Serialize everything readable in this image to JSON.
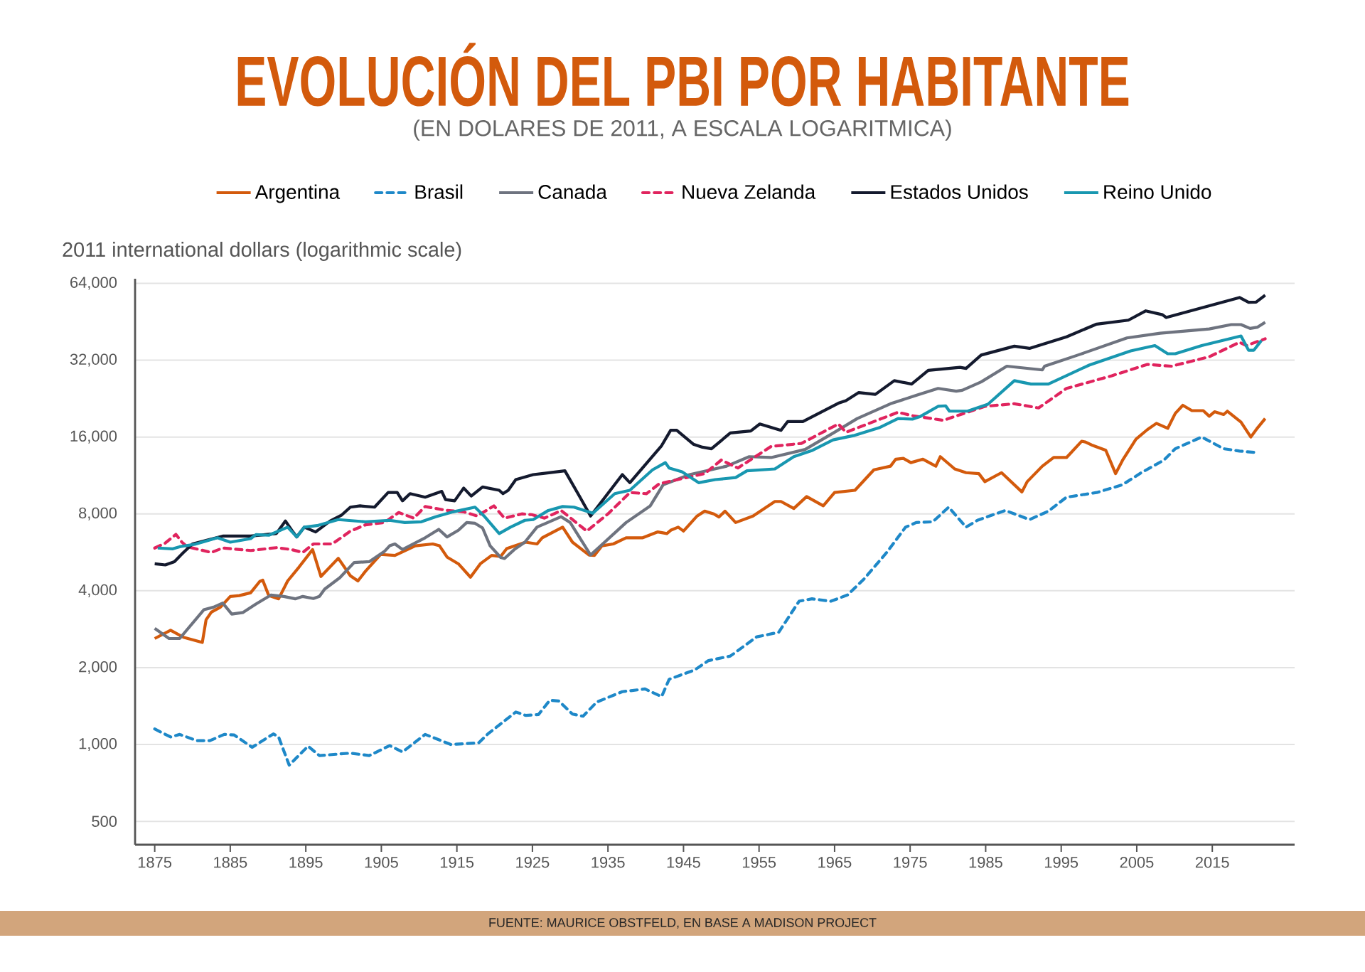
{
  "chart_data": {
    "type": "line",
    "title": "EVOLUCIÓN DEL PBI POR HABITANTE",
    "subtitle": "(EN DOLARES DE 2011, A ESCALA LOGARITMICA)",
    "ylabel": "2011 international dollars (logarithmic scale)",
    "annotations": [
      "FUENTE: MAURICE OBSTFELD, EN BASE A MADISON PROJECT"
    ],
    "log": "y",
    "grid": "y",
    "legend": "top",
    "xlim": [
      1872.4,
      2025.9
    ],
    "ylim": [
      405,
      66700
    ],
    "xticks": [
      1875,
      1885,
      1895,
      1905,
      1915,
      1925,
      1935,
      1945,
      1955,
      1965,
      1975,
      1985,
      1995,
      2005,
      2015
    ],
    "yticks": [
      500,
      {
        "value": 1000,
        "label": "1,000"
      },
      {
        "value": 2000,
        "label": "2,000"
      },
      {
        "value": 4000,
        "label": "4,000"
      },
      {
        "value": 8000,
        "label": "8,000"
      },
      {
        "value": 16000,
        "label": "16,000"
      },
      {
        "value": 32000,
        "label": "32,000"
      },
      {
        "value": 64000,
        "label": "64,000"
      }
    ],
    "series": [
      {
        "name": "Argentina",
        "color": "#d35a0c",
        "line_style": "solid",
        "x": [
          1875,
          1877.1,
          1878.8,
          1881.3,
          1881.8,
          1882.5,
          1883.7,
          1885,
          1886.2,
          1887.7,
          1888.9,
          1889.3,
          1890.1,
          1891.4,
          1892.6,
          1894.1,
          1895.9,
          1897,
          1899.3,
          1900.9,
          1901.9,
          1902.9,
          1904.9,
          1906.8,
          1909.5,
          1911.8,
          1912.7,
          1913.7,
          1915.2,
          1916.8,
          1918.1,
          1919.6,
          1920.8,
          1921.6,
          1924.1,
          1925.6,
          1926.3,
          1929,
          1930.3,
          1932.5,
          1933.2,
          1934.2,
          1935.7,
          1937.4,
          1939.6,
          1941.6,
          1942.8,
          1943.3,
          1944.3,
          1945,
          1946.8,
          1947.8,
          1949,
          1949.7,
          1950.5,
          1951.9,
          1954.2,
          1957.1,
          1957.9,
          1959.6,
          1961.3,
          1963.5,
          1965,
          1967.7,
          1970.2,
          1972.4,
          1973.1,
          1974.1,
          1975.1,
          1976.7,
          1978.4,
          1979,
          1980.9,
          1982.4,
          1984.1,
          1984.9,
          1987.1,
          1989.8,
          1990.5,
          1992.5,
          1994,
          1995.7,
          1997.7,
          1998.2,
          1999,
          2000.9,
          2002.2,
          2003.2,
          2004.9,
          2006.4,
          2007.6,
          2009.1,
          2010.1,
          2011.1,
          2012.3,
          2013.8,
          2014.6,
          2015.3,
          2016.5,
          2017,
          2018.8,
          2020.1,
          2021,
          2022
        ],
        "values": [
          2600,
          2800,
          2630,
          2510,
          3080,
          3300,
          3450,
          3800,
          3830,
          3930,
          4350,
          4400,
          3830,
          3720,
          4370,
          4950,
          5800,
          4550,
          5360,
          4580,
          4370,
          4770,
          5550,
          5500,
          6000,
          6100,
          6000,
          5420,
          5100,
          4520,
          5100,
          5500,
          5450,
          5850,
          6200,
          6100,
          6450,
          7100,
          6200,
          5520,
          5500,
          6000,
          6100,
          6450,
          6450,
          6800,
          6700,
          6900,
          7100,
          6850,
          7850,
          8200,
          8000,
          7780,
          8200,
          7400,
          7850,
          8950,
          8950,
          8400,
          9350,
          8600,
          9700,
          9900,
          11900,
          12300,
          13100,
          13200,
          12700,
          13100,
          12300,
          13400,
          12000,
          11600,
          11500,
          10700,
          11600,
          9750,
          10700,
          12300,
          13300,
          13300,
          15400,
          15300,
          14900,
          14200,
          11500,
          13100,
          15700,
          17100,
          18100,
          17300,
          19800,
          21300,
          20300,
          20300,
          19300,
          20100,
          19600,
          20200,
          18300,
          16000,
          17400,
          18900
        ]
      },
      {
        "name": "Brasil",
        "color": "#1e88c8",
        "line_style": "dashed",
        "x": [
          1875,
          1877.1,
          1878.3,
          1880.6,
          1882.3,
          1884.2,
          1885.5,
          1887.9,
          1890.7,
          1891.4,
          1892.8,
          1895.3,
          1896.8,
          1900.9,
          1903.4,
          1906.1,
          1907.8,
          1910.8,
          1914.2,
          1917.9,
          1919.1,
          1922.8,
          1924.1,
          1925.8,
          1927.3,
          1928.5,
          1930.3,
          1931.7,
          1933.5,
          1936.9,
          1939.9,
          1942.1,
          1943.1,
          1946.5,
          1948.3,
          1951.2,
          1954.7,
          1957.6,
          1960.3,
          1962,
          1964.5,
          1966.7,
          1968.9,
          1971.9,
          1974.4,
          1975.8,
          1978,
          1980.1,
          1982.4,
          1983.9,
          1987.6,
          1990.8,
          1993.3,
          1995.7,
          1999.7,
          2003.1,
          2005.6,
          2008.6,
          2010.1,
          2013.6,
          2016.5,
          2018.6,
          2021
        ],
        "values": [
          1150,
          1070,
          1095,
          1035,
          1035,
          1095,
          1090,
          975,
          1100,
          1070,
          830,
          985,
          905,
          925,
          905,
          990,
          935,
          1095,
          1000,
          1015,
          1100,
          1340,
          1300,
          1310,
          1490,
          1480,
          1315,
          1290,
          1465,
          1610,
          1650,
          1540,
          1800,
          1960,
          2130,
          2220,
          2640,
          2750,
          3640,
          3720,
          3640,
          3850,
          4450,
          5650,
          7100,
          7400,
          7450,
          8500,
          7100,
          7550,
          8250,
          7600,
          8200,
          9300,
          9700,
          10400,
          11600,
          13000,
          14400,
          16000,
          14400,
          14100,
          13900
        ]
      },
      {
        "name": "Canada",
        "color": "#6e737f",
        "line_style": "solid",
        "x": [
          1875,
          1876.9,
          1878.3,
          1881.5,
          1882.8,
          1884,
          1885.2,
          1886.7,
          1888.4,
          1890.4,
          1892.1,
          1893.6,
          1894.6,
          1896,
          1896.8,
          1897.5,
          1899.5,
          1901.4,
          1903.4,
          1905.4,
          1906.1,
          1906.8,
          1907.8,
          1910.8,
          1912.6,
          1913.7,
          1915.2,
          1916.3,
          1917.4,
          1918.4,
          1919.4,
          1920.8,
          1921.3,
          1922.6,
          1924,
          1925.6,
          1928.8,
          1930,
          1932.7,
          1937.4,
          1940.6,
          1942.3,
          1945.8,
          1950.7,
          1953.7,
          1956.6,
          1961.1,
          1965,
          1968,
          1972.4,
          1975.8,
          1978.7,
          1981.1,
          1981.9,
          1984.4,
          1987.8,
          1992.5,
          1992.8,
          1997.2,
          2003.7,
          2008.1,
          2014.6,
          2017.5,
          2018.8,
          2020,
          2021,
          2022
        ],
        "values": [
          2850,
          2600,
          2600,
          3370,
          3450,
          3580,
          3240,
          3290,
          3550,
          3850,
          3800,
          3720,
          3800,
          3730,
          3800,
          4060,
          4500,
          5160,
          5200,
          5700,
          6000,
          6100,
          5800,
          6450,
          6960,
          6500,
          6900,
          7400,
          7350,
          7050,
          6000,
          5400,
          5350,
          5800,
          6200,
          7100,
          7800,
          7400,
          5520,
          7400,
          8600,
          10400,
          11400,
          12300,
          13400,
          13300,
          14300,
          16700,
          18900,
          21600,
          23300,
          24800,
          24200,
          24400,
          26300,
          30300,
          29300,
          30300,
          33500,
          39100,
          40800,
          42400,
          44100,
          44100,
          42600,
          43100,
          45000
        ]
      },
      {
        "name": "Nueva Zelanda",
        "color": "#e0245e",
        "line_style": "dashed",
        "x": [
          1875,
          1876.4,
          1877.8,
          1878.6,
          1879.3,
          1882.5,
          1884,
          1887.7,
          1891.1,
          1893.1,
          1894.6,
          1896,
          1898.5,
          1900.9,
          1902.9,
          1905.4,
          1907.3,
          1909.3,
          1910.8,
          1913.7,
          1915.9,
          1917.7,
          1919.9,
          1921.3,
          1923.6,
          1924.9,
          1926.6,
          1928.8,
          1932.2,
          1935,
          1937.9,
          1940.1,
          1941.8,
          1944.8,
          1947.8,
          1950,
          1952.2,
          1956.6,
          1960.6,
          1965.5,
          1966.5,
          1973.4,
          1975.3,
          1979.4,
          1984.9,
          1988.8,
          1992,
          1995.7,
          2001.7,
          2006.4,
          2009.6,
          2014.6,
          2018.6,
          2019.5,
          2022
        ],
        "values": [
          5880,
          6150,
          6650,
          6200,
          5950,
          5650,
          5880,
          5750,
          5900,
          5800,
          5650,
          6100,
          6100,
          6850,
          7250,
          7400,
          8100,
          7700,
          8550,
          8250,
          8150,
          7850,
          8600,
          7700,
          8000,
          7950,
          7700,
          8250,
          6850,
          8000,
          9700,
          9600,
          10500,
          11000,
          11500,
          13000,
          12100,
          14700,
          15100,
          18000,
          16700,
          20000,
          19400,
          18600,
          21100,
          21600,
          20800,
          24800,
          27800,
          30800,
          30300,
          33000,
          37600,
          36500,
          38800
        ]
      },
      {
        "name": "Estados Unidos",
        "color": "#141a2e",
        "line_style": "solid",
        "x": [
          1875,
          1876.4,
          1877.6,
          1878.8,
          1880,
          1881.8,
          1884,
          1887.7,
          1891.1,
          1892.3,
          1893.3,
          1893.8,
          1894.8,
          1896.3,
          1898.2,
          1899.7,
          1900.9,
          1902.2,
          1904.1,
          1905.9,
          1907.1,
          1907.8,
          1908.8,
          1910.8,
          1913,
          1913.5,
          1914.7,
          1915.9,
          1916.9,
          1918.4,
          1920.6,
          1921.1,
          1921.8,
          1922.8,
          1925.1,
          1929.3,
          1931.3,
          1932.7,
          1936.9,
          1937.9,
          1942.1,
          1943.3,
          1944.1,
          1946.3,
          1947.5,
          1948.7,
          1951.2,
          1953.9,
          1955.1,
          1957.9,
          1958.8,
          1960.8,
          1965.5,
          1966.5,
          1968.2,
          1970.4,
          1972.9,
          1975.2,
          1977.4,
          1981.6,
          1982.4,
          1984.4,
          1988.8,
          1990.8,
          1995.7,
          1999.7,
          2003.9,
          2006.2,
          2008.4,
          2008.9,
          2018.6,
          2019.8,
          2020.8,
          2022
        ],
        "values": [
          5100,
          5050,
          5200,
          5650,
          6100,
          6300,
          6550,
          6550,
          6700,
          7500,
          6800,
          6500,
          7100,
          6800,
          7500,
          7900,
          8500,
          8600,
          8500,
          9700,
          9700,
          9000,
          9600,
          9300,
          9800,
          9100,
          9000,
          10100,
          9400,
          10200,
          9900,
          9600,
          9900,
          10900,
          11400,
          11800,
          9300,
          7850,
          11400,
          10600,
          14800,
          17000,
          17000,
          15000,
          14600,
          14400,
          16600,
          16900,
          18000,
          17000,
          18400,
          18400,
          21700,
          22200,
          23900,
          23500,
          26600,
          25800,
          29200,
          30000,
          29700,
          33500,
          36300,
          35600,
          39500,
          44300,
          45900,
          49900,
          48200,
          47000,
          56300,
          53900,
          54000,
          57500
        ]
      },
      {
        "name": "Reino Unido",
        "color": "#1897b0",
        "line_style": "solid",
        "x": [
          1875.4,
          1877.4,
          1878.3,
          1880.3,
          1883.3,
          1885,
          1887.7,
          1888.4,
          1890.1,
          1892.6,
          1893.8,
          1894.8,
          1896.5,
          1899.3,
          1902.9,
          1906.1,
          1908.1,
          1910.3,
          1912.2,
          1914.5,
          1917.4,
          1918.6,
          1920.6,
          1922.1,
          1924,
          1925.1,
          1927.1,
          1929,
          1930.5,
          1933,
          1935.9,
          1937.9,
          1940.9,
          1942.6,
          1943.1,
          1944.8,
          1947,
          1949.2,
          1951.9,
          1953.4,
          1957.1,
          1959.6,
          1962.1,
          1964.8,
          1967.5,
          1970.9,
          1973.4,
          1975.3,
          1976.4,
          1978.7,
          1979.7,
          1980.2,
          1982.6,
          1985.3,
          1988.8,
          1991,
          1993.3,
          1998.7,
          2004.2,
          2007.4,
          2009.1,
          2010.1,
          2013.6,
          2018.8,
          2019.8,
          2020.5,
          2021.5
        ],
        "values": [
          5880,
          5840,
          5950,
          6080,
          6450,
          6200,
          6400,
          6640,
          6600,
          7100,
          6500,
          7100,
          7200,
          7600,
          7450,
          7550,
          7400,
          7450,
          7800,
          8150,
          8500,
          7850,
          6700,
          7100,
          7550,
          7600,
          8250,
          8550,
          8500,
          8050,
          9600,
          9900,
          11900,
          12700,
          12100,
          11700,
          10600,
          10900,
          11100,
          11800,
          12000,
          13400,
          14200,
          15600,
          16200,
          17400,
          18900,
          18800,
          19300,
          21100,
          21200,
          20200,
          20200,
          21500,
          26600,
          25800,
          25800,
          30600,
          34800,
          36500,
          33900,
          33900,
          36500,
          39800,
          35000,
          35000,
          38200
        ]
      }
    ]
  }
}
